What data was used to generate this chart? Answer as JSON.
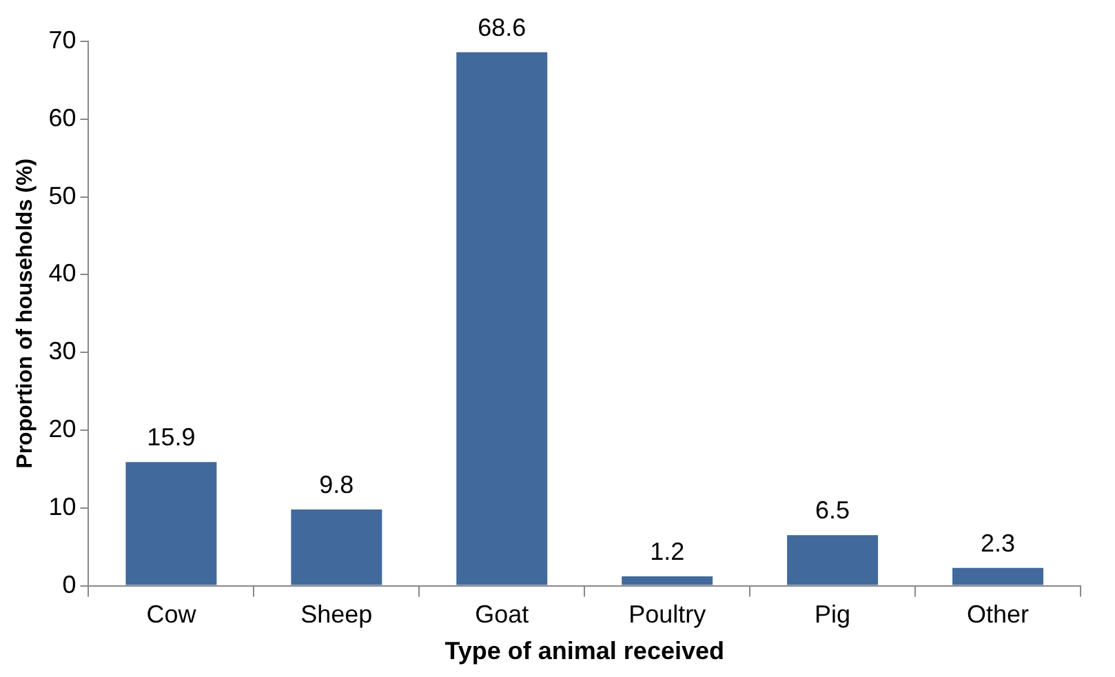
{
  "chart_data": {
    "type": "bar",
    "xlabel": "Type of animal received",
    "ylabel": "Proportion of households (%)",
    "categories": [
      "Cow",
      "Sheep",
      "Goat",
      "Poultry",
      "Pig",
      "Other"
    ],
    "values": [
      15.9,
      9.8,
      68.6,
      1.2,
      6.5,
      2.3
    ],
    "color": "#41699b",
    "ylim": [
      0,
      70
    ],
    "yticks": [
      0,
      10,
      20,
      30,
      40,
      50,
      60,
      70
    ],
    "grid": false,
    "legend": false,
    "data_labels": true
  }
}
